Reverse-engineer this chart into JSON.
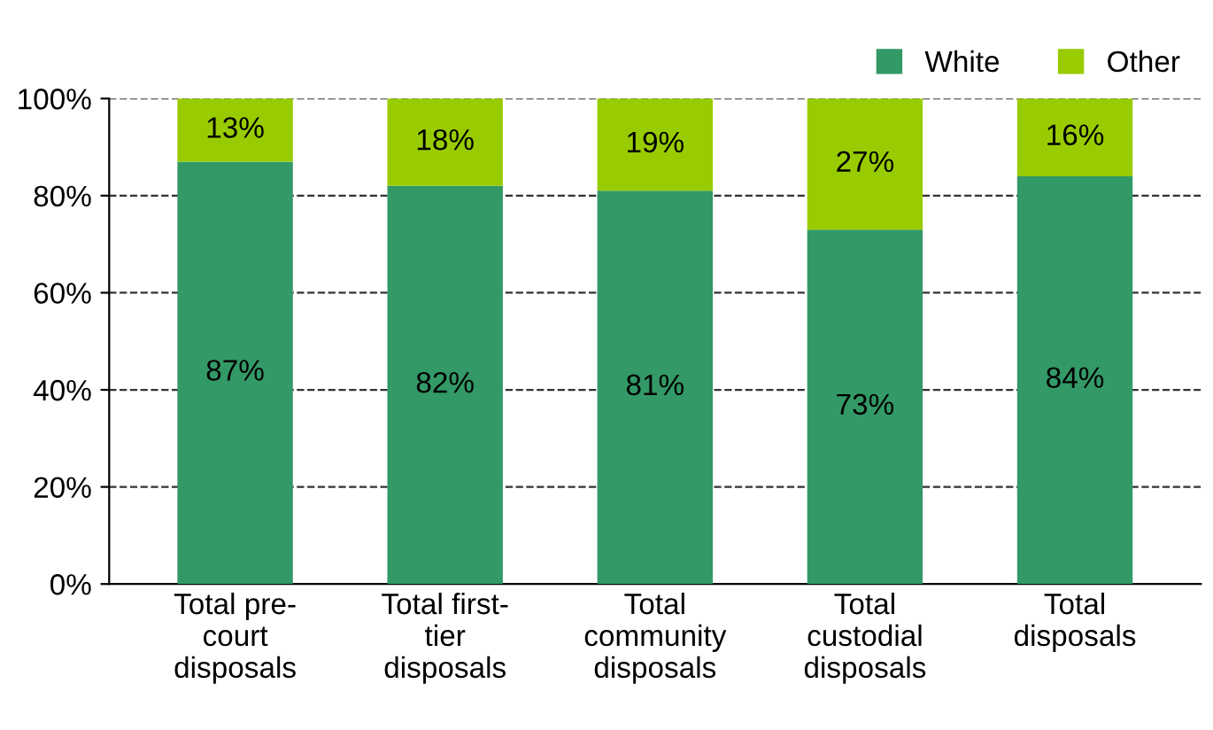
{
  "chart_data": {
    "type": "bar",
    "stacked": true,
    "categories": [
      "Total pre-\ncourt\ndisposals",
      "Total first-\ntier\ndisposals",
      "Total\ncommunity\ndisposals",
      "Total\ncustodial\ndisposals",
      "Total\ndisposals"
    ],
    "series": [
      {
        "name": "White",
        "color": "#339966",
        "values": [
          87,
          82,
          81,
          73,
          84
        ],
        "value_labels": [
          "87%",
          "82%",
          "81%",
          "73%",
          "84%"
        ]
      },
      {
        "name": "Other",
        "color": "#99cc00",
        "values": [
          13,
          18,
          19,
          27,
          16
        ],
        "value_labels": [
          "13%",
          "18%",
          "19%",
          "27%",
          "16%"
        ]
      }
    ],
    "ylim": [
      0,
      100
    ],
    "yticks": [
      {
        "value": 0,
        "label": "0%"
      },
      {
        "value": 20,
        "label": "20%"
      },
      {
        "value": 40,
        "label": "40%"
      },
      {
        "value": 60,
        "label": "60%"
      },
      {
        "value": 80,
        "label": "80%"
      },
      {
        "value": 100,
        "label": "100%"
      }
    ],
    "grid": "y",
    "line_style": "dashed",
    "legend": "top right"
  }
}
